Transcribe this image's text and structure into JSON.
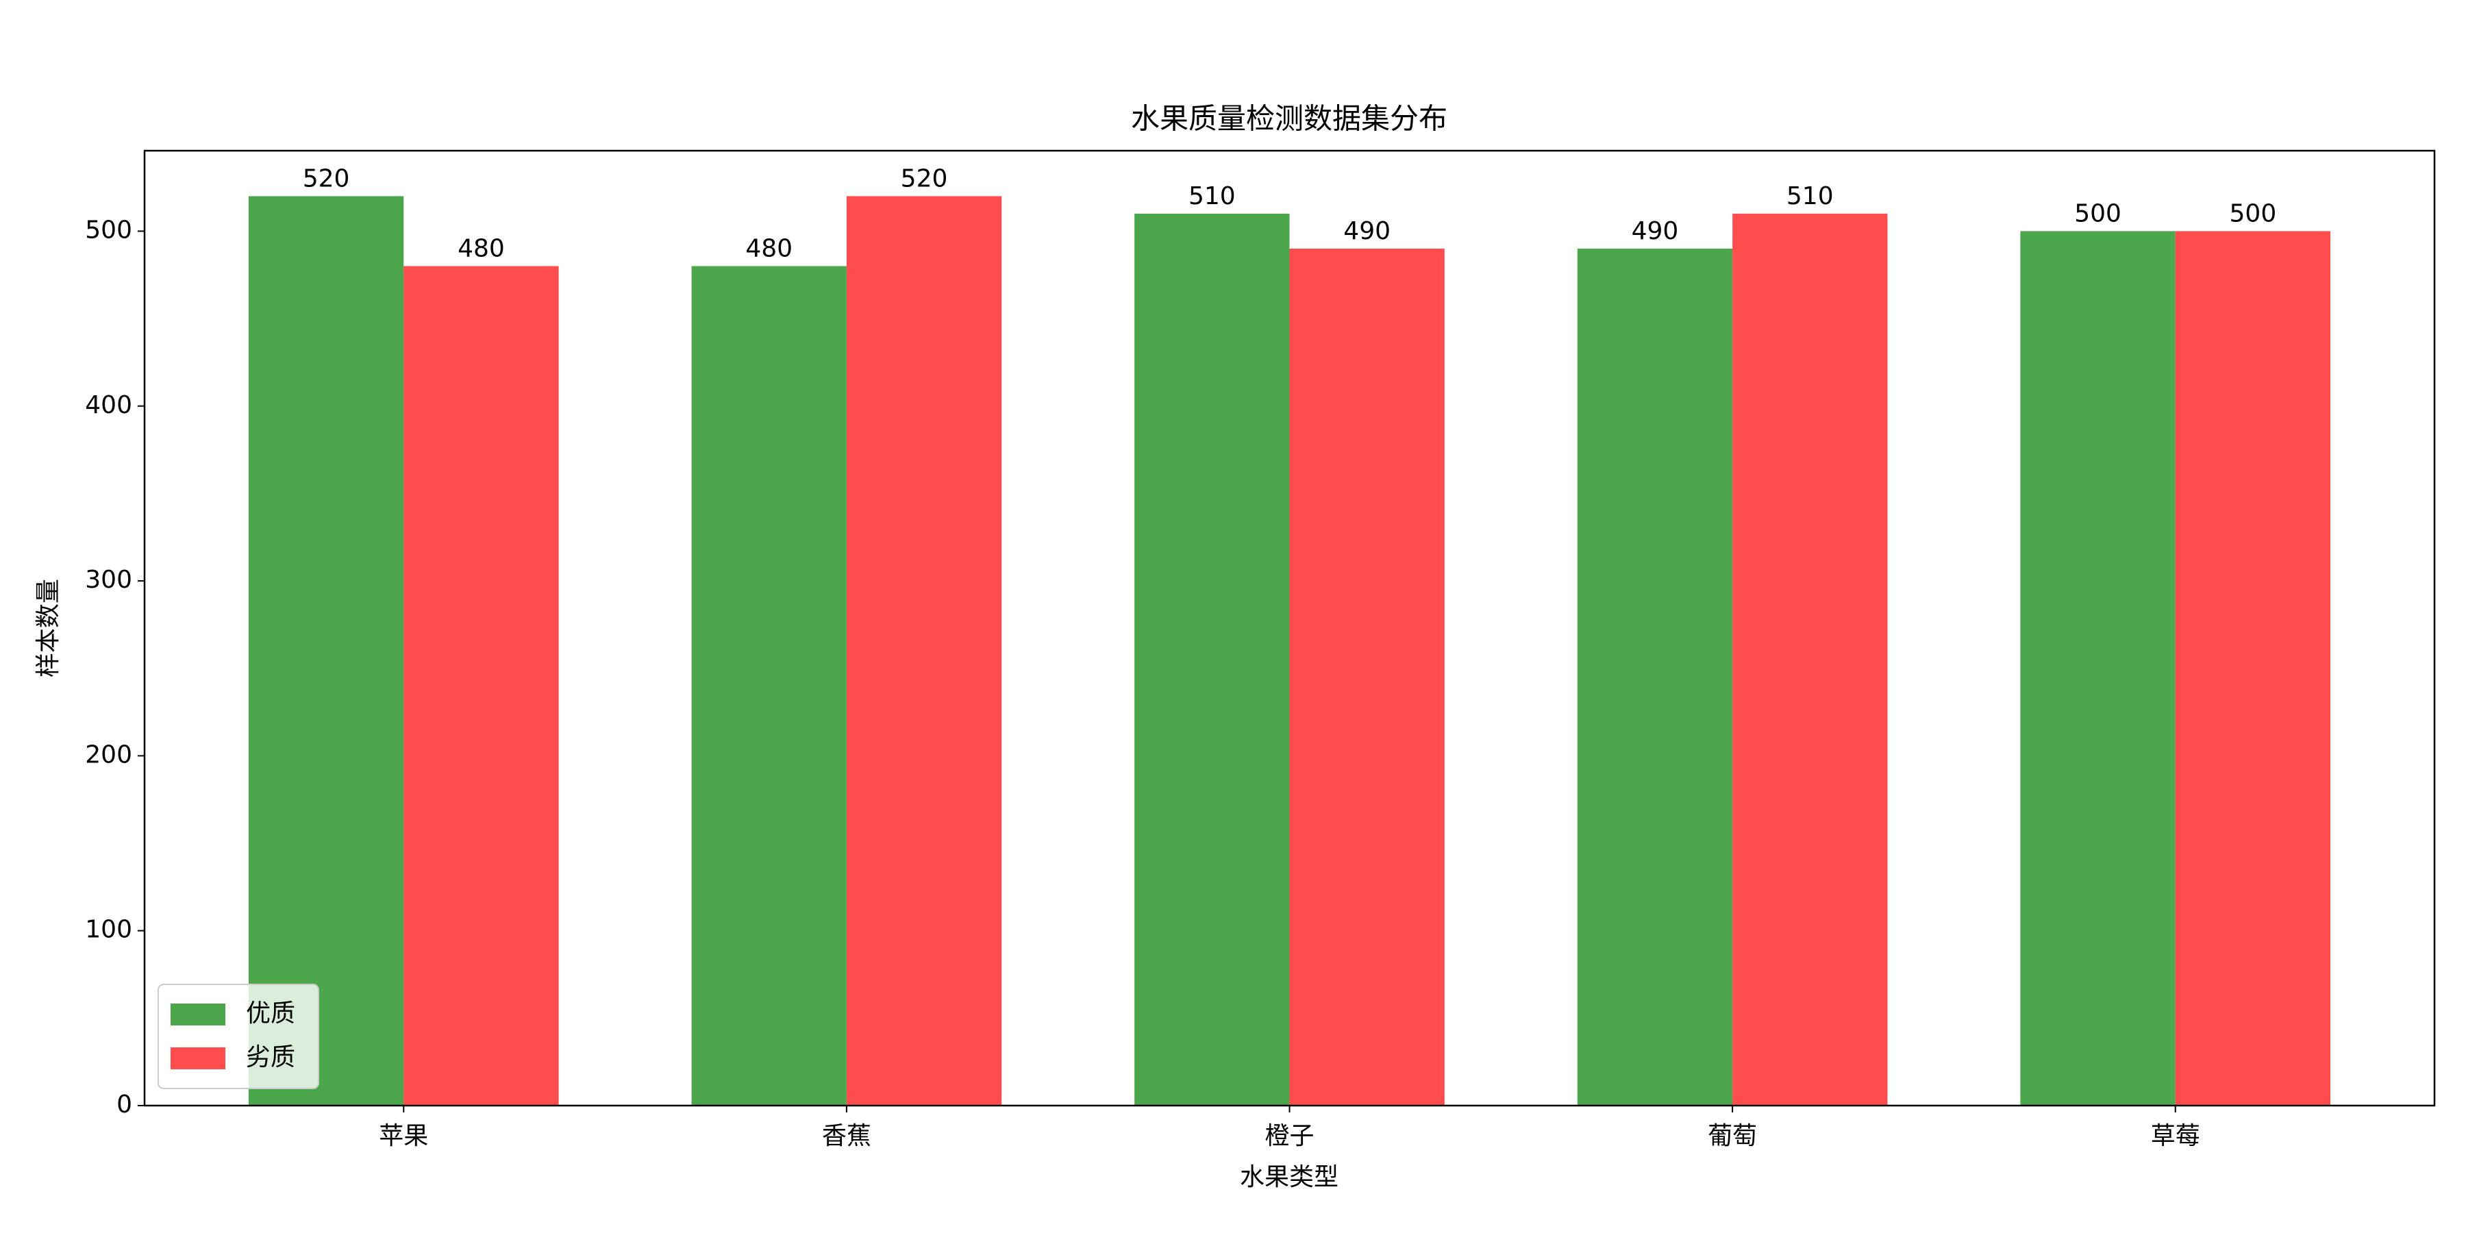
{
  "chart_data": {
    "type": "bar",
    "title": "水果质量检测数据集分布",
    "x_label": "水果类型",
    "y_label": "样本数量",
    "categories": [
      "苹果",
      "香蕉",
      "橙子",
      "葡萄",
      "草莓"
    ],
    "series": [
      {
        "name": "优质",
        "color": "#4ca64c",
        "values": [
          520,
          480,
          510,
          490,
          500
        ]
      },
      {
        "name": "劣质",
        "color": "#ff4c4c",
        "values": [
          480,
          520,
          490,
          510,
          500
        ]
      }
    ],
    "ylim": [
      0,
      546
    ],
    "yticks": [
      0,
      100,
      200,
      300,
      400,
      500
    ],
    "grid": false,
    "legend": "lower left"
  }
}
